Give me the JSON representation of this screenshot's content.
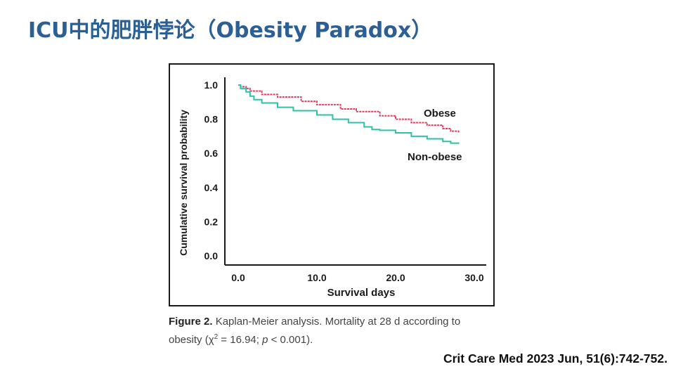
{
  "slide": {
    "title": "ICU中的肥胖悖论（Obesity Paradox）",
    "citation": "Crit Care Med 2023 Jun, 51(6):742-752."
  },
  "caption": {
    "label": "Figure 2.",
    "text_line1": "Kaplan-Meier analysis. Mortality at 28 d according to",
    "text_line2a": "obesity (χ",
    "sup": "2",
    "text_line2b": " = 16.94; ",
    "p": "p",
    "text_line2c": " < 0.001)."
  },
  "chart_data": {
    "type": "line",
    "subtype": "kaplan-meier-step",
    "title": "",
    "xlabel": "Survival days",
    "ylabel": "Cumulative survival probability",
    "xlim": [
      0,
      30
    ],
    "ylim": [
      0,
      1.0
    ],
    "xticks": [
      "0.0",
      "10.0",
      "20.0",
      "30.0"
    ],
    "xtick_values": [
      0,
      10,
      20,
      30
    ],
    "yticks": [
      "0.0",
      "0.2",
      "0.4",
      "0.6",
      "0.8",
      "1.0"
    ],
    "ytick_values": [
      0,
      0.2,
      0.4,
      0.6,
      0.8,
      1.0
    ],
    "grid": false,
    "series": [
      {
        "name": "Obese",
        "color": "#e0405f",
        "dashed": true,
        "x": [
          0,
          0.3,
          1,
          1.5,
          3,
          5,
          8,
          10,
          13,
          15,
          18,
          20,
          22,
          24,
          26,
          27,
          28
        ],
        "y": [
          1.0,
          0.99,
          0.98,
          0.965,
          0.945,
          0.93,
          0.905,
          0.885,
          0.86,
          0.845,
          0.82,
          0.8,
          0.78,
          0.765,
          0.745,
          0.73,
          0.72
        ]
      },
      {
        "name": "Non-obese",
        "color": "#2ec2a6",
        "dashed": false,
        "x": [
          0,
          0.3,
          1,
          1.5,
          2,
          3,
          5,
          7,
          10,
          12,
          14,
          16,
          17,
          18,
          20,
          22,
          24,
          26,
          27,
          28
        ],
        "y": [
          1.0,
          0.98,
          0.96,
          0.935,
          0.915,
          0.895,
          0.87,
          0.85,
          0.825,
          0.8,
          0.78,
          0.755,
          0.74,
          0.735,
          0.72,
          0.7,
          0.685,
          0.67,
          0.66,
          0.655
        ]
      }
    ]
  }
}
